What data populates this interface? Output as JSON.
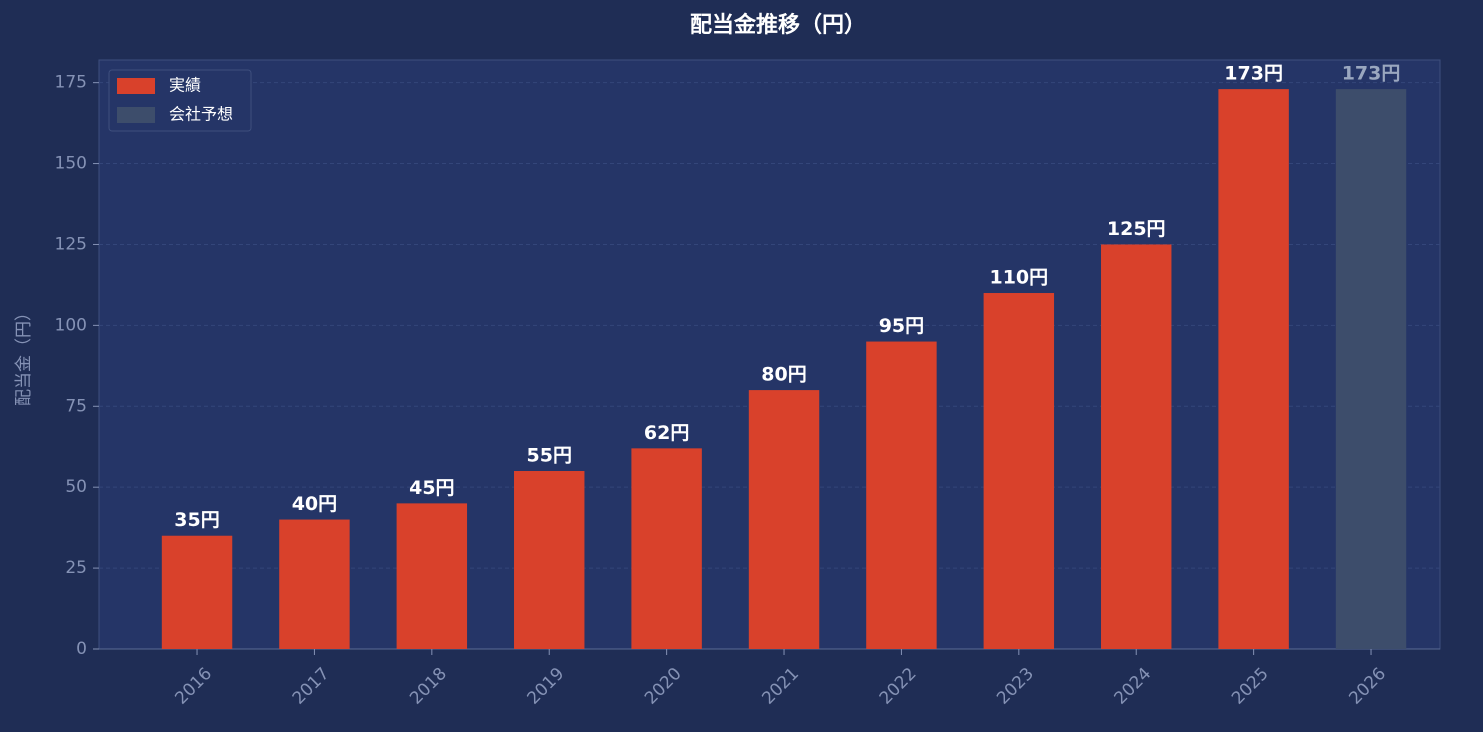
{
  "chart_data": {
    "type": "bar",
    "title": "配当金推移（円）",
    "y_label": "配当金（円）",
    "categories": [
      "2016",
      "2017",
      "2018",
      "2019",
      "2020",
      "2021",
      "2022",
      "2023",
      "2024",
      "2025",
      "2026"
    ],
    "series": [
      {
        "name": "実績",
        "color": "#d9412b",
        "label_color": "#ffffff",
        "values": [
          35,
          40,
          45,
          55,
          62,
          80,
          95,
          110,
          125,
          173,
          null
        ],
        "value_labels": [
          "35円",
          "40円",
          "45円",
          "55円",
          "62円",
          "80円",
          "95円",
          "110円",
          "125円",
          "173円",
          null
        ]
      },
      {
        "name": "会社予想",
        "color": "#3d4d6b",
        "label_color": "#9aa7bf",
        "values": [
          null,
          null,
          null,
          null,
          null,
          null,
          null,
          null,
          null,
          null,
          173
        ],
        "value_labels": [
          null,
          null,
          null,
          null,
          null,
          null,
          null,
          null,
          null,
          null,
          "173円"
        ]
      }
    ],
    "ylim": [
      0,
      182
    ],
    "yticks": [
      0,
      25,
      50,
      75,
      100,
      125,
      150,
      175
    ],
    "grid": true,
    "legend": "upper left"
  }
}
